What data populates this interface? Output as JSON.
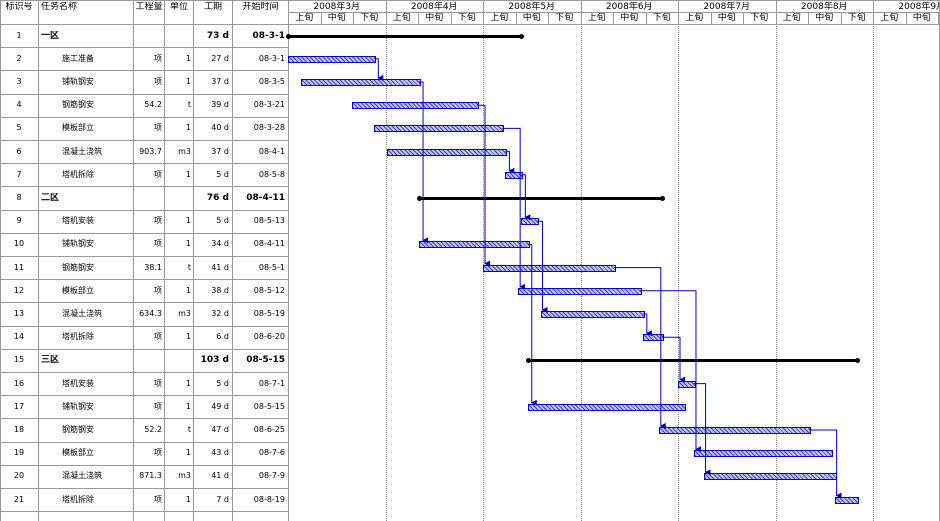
{
  "headers": {
    "id": "标识号",
    "name": "任务名称",
    "qty": "工程量",
    "unit": "单位",
    "duration": "工期",
    "start": "开始时间"
  },
  "timeline": {
    "months": [
      "2008年3月",
      "2008年4月",
      "2008年5月",
      "2008年6月",
      "2008年7月",
      "2008年8月",
      "2008年9月"
    ],
    "periods": [
      "上旬",
      "中旬",
      "下旬"
    ]
  },
  "tasks": [
    {
      "id": "1",
      "name": "一区",
      "qty": "",
      "unit": "",
      "duration": "73 d",
      "start": "08-3-1",
      "summary": true,
      "s": 0,
      "d": 73
    },
    {
      "id": "2",
      "name": "施工准备",
      "qty": "项",
      "unit": "1",
      "duration": "27 d",
      "start": "08-3-1",
      "summary": false,
      "s": 0,
      "d": 27
    },
    {
      "id": "3",
      "name": "铺轨钢安",
      "qty": "项",
      "unit": "1",
      "duration": "37 d",
      "start": "08-3-5",
      "summary": false,
      "s": 4,
      "d": 37
    },
    {
      "id": "4",
      "name": "钢筋钢安",
      "qty": "54.2",
      "unit": "t",
      "duration": "39 d",
      "start": "08-3-21",
      "summary": false,
      "s": 20,
      "d": 39
    },
    {
      "id": "5",
      "name": "模板部立",
      "qty": "项",
      "unit": "1",
      "duration": "40 d",
      "start": "08-3-28",
      "summary": false,
      "s": 27,
      "d": 40
    },
    {
      "id": "6",
      "name": "混凝土浇筑",
      "qty": "903.7",
      "unit": "m3",
      "duration": "37 d",
      "start": "08-4-1",
      "summary": false,
      "s": 31,
      "d": 37
    },
    {
      "id": "7",
      "name": "塔机拆除",
      "qty": "项",
      "unit": "1",
      "duration": "5 d",
      "start": "08-5-8",
      "summary": false,
      "s": 68,
      "d": 5
    },
    {
      "id": "8",
      "name": "二区",
      "qty": "",
      "unit": "",
      "duration": "76 d",
      "start": "08-4-11",
      "summary": true,
      "s": 41,
      "d": 76
    },
    {
      "id": "9",
      "name": "塔机安装",
      "qty": "项",
      "unit": "1",
      "duration": "5 d",
      "start": "08-5-13",
      "summary": false,
      "s": 73,
      "d": 5
    },
    {
      "id": "10",
      "name": "铺轨钢安",
      "qty": "项",
      "unit": "1",
      "duration": "34 d",
      "start": "08-4-11",
      "summary": false,
      "s": 41,
      "d": 34
    },
    {
      "id": "11",
      "name": "钢筋钢安",
      "qty": "38.1",
      "unit": "t",
      "duration": "41 d",
      "start": "08-5-1",
      "summary": false,
      "s": 61,
      "d": 41
    },
    {
      "id": "12",
      "name": "模板部立",
      "qty": "项",
      "unit": "1",
      "duration": "38 d",
      "start": "08-5-12",
      "summary": false,
      "s": 72,
      "d": 38
    },
    {
      "id": "13",
      "name": "混凝土浇筑",
      "qty": "634.3",
      "unit": "m3",
      "duration": "32 d",
      "start": "08-5-19",
      "summary": false,
      "s": 79,
      "d": 32
    },
    {
      "id": "14",
      "name": "塔机拆除",
      "qty": "项",
      "unit": "1",
      "duration": "6 d",
      "start": "08-6-20",
      "summary": false,
      "s": 111,
      "d": 6
    },
    {
      "id": "15",
      "name": "三区",
      "qty": "",
      "unit": "",
      "duration": "103 d",
      "start": "08-5-15",
      "summary": true,
      "s": 75,
      "d": 103
    },
    {
      "id": "16",
      "name": "塔机安装",
      "qty": "项",
      "unit": "1",
      "duration": "5 d",
      "start": "08-7-1",
      "summary": false,
      "s": 122,
      "d": 5
    },
    {
      "id": "17",
      "name": "铺轨钢安",
      "qty": "项",
      "unit": "1",
      "duration": "49 d",
      "start": "08-5-15",
      "summary": false,
      "s": 75,
      "d": 49
    },
    {
      "id": "18",
      "name": "钢筋钢安",
      "qty": "52.2",
      "unit": "t",
      "duration": "47 d",
      "start": "08-6-25",
      "summary": false,
      "s": 116,
      "d": 47
    },
    {
      "id": "19",
      "name": "模板部立",
      "qty": "项",
      "unit": "1",
      "duration": "43 d",
      "start": "08-7-6",
      "summary": false,
      "s": 127,
      "d": 43
    },
    {
      "id": "20",
      "name": "混凝土浇筑",
      "qty": "871.3",
      "unit": "m3",
      "duration": "41 d",
      "start": "08-7-9",
      "summary": false,
      "s": 130,
      "d": 41
    },
    {
      "id": "21",
      "name": "塔机拆除",
      "qty": "项",
      "unit": "1",
      "duration": "7 d",
      "start": "08-8-19",
      "summary": false,
      "s": 171,
      "d": 7
    }
  ],
  "links": [
    [
      2,
      3
    ],
    [
      3,
      10
    ],
    [
      4,
      11
    ],
    [
      5,
      12
    ],
    [
      6,
      7
    ],
    [
      7,
      9
    ],
    [
      9,
      13
    ],
    [
      10,
      17
    ],
    [
      11,
      18
    ],
    [
      12,
      19
    ],
    [
      13,
      14
    ],
    [
      14,
      16
    ],
    [
      16,
      20
    ],
    [
      18,
      21
    ]
  ],
  "colors": {
    "bar_border": "#0000c8",
    "link": "#0000c8",
    "summary": "#000000",
    "grid": "#9a9a9a"
  }
}
